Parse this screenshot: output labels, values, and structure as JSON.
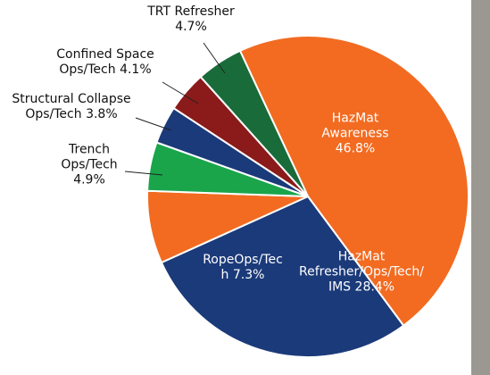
{
  "chart_data": {
    "type": "pie",
    "categories": [
      "HazMat Awareness",
      "HazMat Refresher/Ops/Tech/IMS",
      "RopeOps/Tech",
      "Trench Ops/Tech",
      "Structural Collapse Ops/Tech",
      "Confined Space Ops/Tech",
      "TRT Refresher"
    ],
    "values": [
      46.8,
      28.4,
      7.3,
      4.9,
      3.8,
      4.1,
      4.7
    ],
    "value_labels": [
      "46.8%",
      "28.4%",
      "7.3%",
      "4.9%",
      "3.8%",
      "4.1%",
      "4.7%"
    ],
    "colors": [
      "#f26b21",
      "#1b3a7a",
      "#f26b21",
      "#1aa54b",
      "#1b3a7a",
      "#8b1a1a",
      "#1a6b3a"
    ]
  }
}
